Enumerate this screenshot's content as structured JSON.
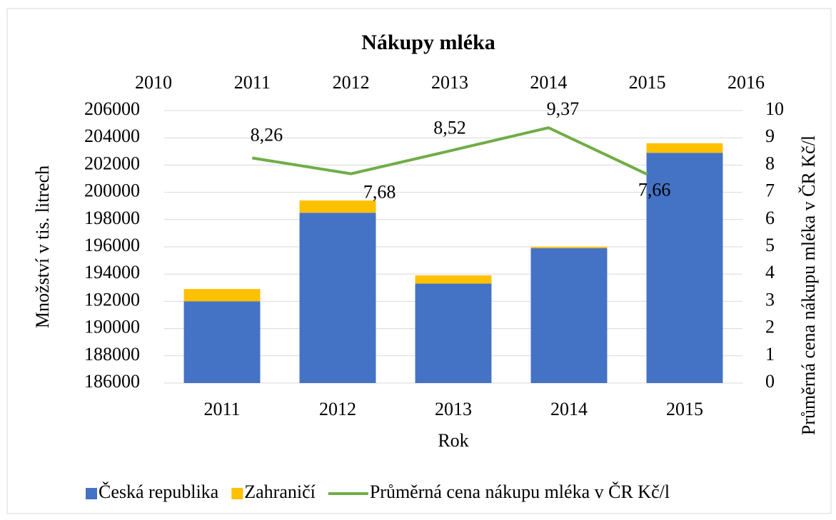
{
  "chart_data": {
    "type": "bar",
    "title": "Nákupy mléka",
    "stacked": true,
    "grid": true,
    "legend": "bottom",
    "categories": [
      "2011",
      "2012",
      "2013",
      "2014",
      "2015"
    ],
    "series": [
      {
        "name": "Česká republika",
        "color": "#4472c4",
        "values": [
          192000,
          198500,
          193300,
          195900,
          202900
        ]
      },
      {
        "name": "Zahraničí",
        "color": "#ffc000",
        "values": [
          900,
          900,
          600,
          100,
          700
        ]
      },
      {
        "name": "Průměrná cena nákupu mléka v ČR Kč/l",
        "color": "#70ad47",
        "type": "line",
        "axis": "y2",
        "x": [
          2011,
          2012,
          2013,
          2014,
          2015
        ],
        "values": [
          8.26,
          7.68,
          8.52,
          9.37,
          7.66
        ],
        "value_labels": [
          "8,26",
          "7,68",
          "8,52",
          "9,37",
          "7,66"
        ]
      }
    ],
    "ylim": [
      186000,
      206000
    ],
    "yticks": [
      186000,
      188000,
      190000,
      192000,
      194000,
      196000,
      198000,
      200000,
      202000,
      204000,
      206000
    ],
    "y2lim": [
      0,
      10
    ],
    "y2ticks": [
      0,
      1,
      2,
      3,
      4,
      5,
      6,
      7,
      8,
      9,
      10
    ],
    "x2lim": [
      2010,
      2016
    ],
    "x2ticks": [
      2010,
      2011,
      2012,
      2013,
      2014,
      2015,
      2016
    ],
    "xlabel": "Rok",
    "ylabel": "Množství v tis. litrech",
    "y2label": "Průměrná cena nákupu mléka v ČR Kč/l"
  }
}
